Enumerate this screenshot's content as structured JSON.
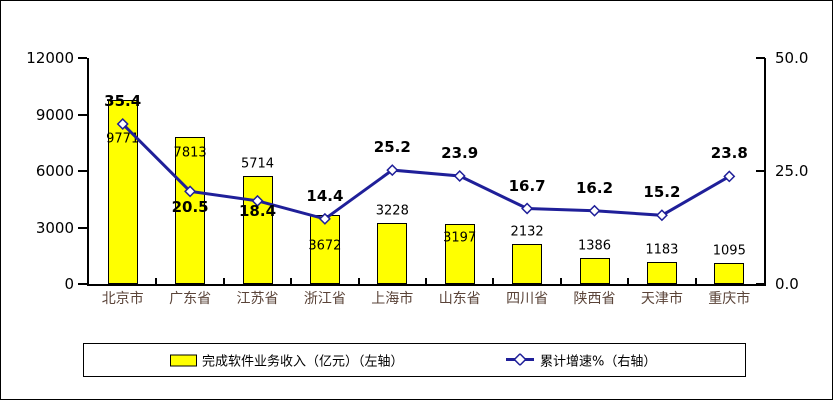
{
  "chart_data": {
    "type": "bar",
    "title": "",
    "categories": [
      "北京市",
      "广东省",
      "江苏省",
      "浙江省",
      "上海市",
      "山东省",
      "四川省",
      "陕西省",
      "天津市",
      "重庆市"
    ],
    "series": [
      {
        "name": "完成软件业务收入（亿元）（左轴）",
        "type": "bar",
        "axis": "left",
        "values": [
          9771,
          7813,
          5714,
          3672,
          3228,
          3197,
          2132,
          1386,
          1183,
          1095
        ]
      },
      {
        "name": "累计增速%（右轴）",
        "type": "line",
        "axis": "right",
        "values": [
          35.4,
          20.5,
          18.4,
          14.4,
          25.2,
          23.9,
          16.7,
          16.2,
          15.2,
          23.8
        ]
      }
    ],
    "left_axis": {
      "min": 0,
      "max": 12000,
      "tick_labels": [
        "0",
        "3000",
        "6000",
        "9000",
        "12000"
      ]
    },
    "right_axis": {
      "min": 0,
      "max": 50,
      "tick_labels": [
        "0.0",
        "25.0",
        "50.0"
      ]
    },
    "grid": false,
    "legend_position": "bottom",
    "label_layout": {
      "bar_label_dy": [
        39,
        16,
        -12,
        31,
        -12,
        14,
        -12,
        -12,
        -12,
        -12
      ],
      "line_label_dy": [
        -23,
        16,
        10,
        -23,
        -23,
        -23,
        -23,
        -23,
        -23,
        -23
      ]
    }
  },
  "legend": {
    "items": [
      {
        "label": "完成软件业务收入（亿元）（左轴）"
      },
      {
        "label": "累计增速%（右轴）"
      }
    ]
  },
  "colors": {
    "bar_fill": "#FFFF00",
    "bar_border": "#000000",
    "line": "#1F1F99",
    "marker_fill": "#FFFFFF",
    "axis": "#000000",
    "category_label": "#5A4338",
    "value_label": "#000000"
  }
}
